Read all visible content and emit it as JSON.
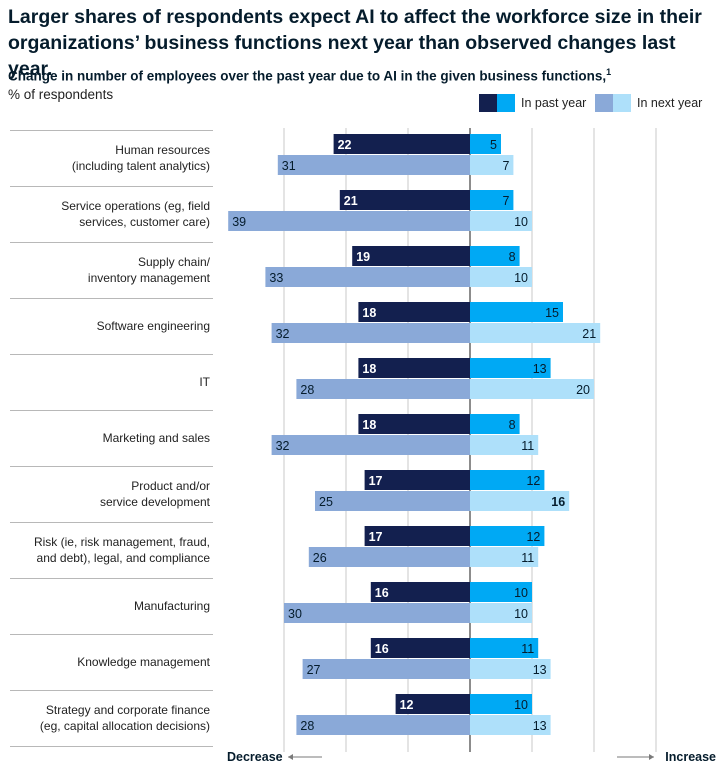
{
  "header": {
    "title": "Larger shares of respondents expect AI to affect the workforce size in their organizations’ business functions next year than observed changes last year.",
    "subtitle": "Change in number of employees over the past year due to AI in the given business functions,",
    "subtitle_footnote": "1",
    "units": "% of respondents"
  },
  "legend": {
    "past_label": "In past year",
    "next_label": "In next year"
  },
  "colors": {
    "past_decrease": "#13204f",
    "past_increase": "#00a9f4",
    "next_decrease": "#8aa9d8",
    "next_increase": "#aee0fa",
    "text_dark": "#051c2c",
    "grid": "#c8c8c8"
  },
  "chart_data": {
    "type": "bar",
    "orientation": "horizontal-diverging",
    "categories": [
      "Human resources\n(including talent analytics)",
      "Service operations (eg, field\nservices, customer care)",
      "Supply chain/\ninventory management",
      "Software engineering",
      "IT",
      "Marketing and sales",
      "Product and/or\nservice development",
      "Risk (ie, risk management, fraud,\nand debt), legal, and compliance",
      "Manufacturing",
      "Knowledge management",
      "Strategy and corporate finance\n(eg, capital allocation decisions)"
    ],
    "series": [
      {
        "name": "In past year — decrease",
        "period": "past",
        "direction": "decrease",
        "values": [
          22,
          21,
          19,
          18,
          18,
          18,
          17,
          17,
          16,
          16,
          12
        ]
      },
      {
        "name": "In past year — increase",
        "period": "past",
        "direction": "increase",
        "values": [
          5,
          7,
          8,
          15,
          13,
          8,
          12,
          12,
          10,
          11,
          10
        ]
      },
      {
        "name": "In next year — decrease",
        "period": "next",
        "direction": "decrease",
        "values": [
          31,
          39,
          33,
          32,
          28,
          32,
          25,
          26,
          30,
          27,
          28
        ]
      },
      {
        "name": "In next year — increase",
        "period": "next",
        "direction": "increase",
        "values": [
          7,
          10,
          10,
          21,
          20,
          11,
          16,
          11,
          10,
          13,
          13
        ]
      }
    ],
    "xlim": [
      -40,
      40
    ],
    "gridlines": [
      -30,
      -20,
      -10,
      0,
      10,
      20,
      30
    ],
    "x_left_label": "Decrease",
    "x_right_label": "Increase",
    "grid": true,
    "legend_position": "top-right"
  }
}
